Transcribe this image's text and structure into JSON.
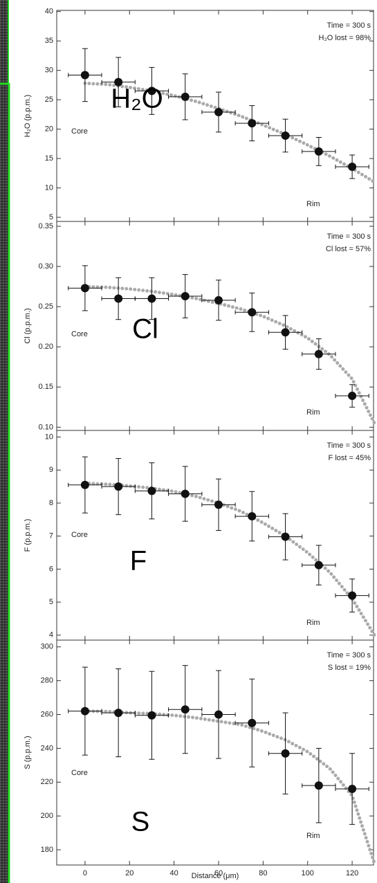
{
  "chart_data": [
    {
      "type": "errorbar",
      "y_label": "H₂O (p.p.m.)",
      "big_label": "H₂O",
      "annotations": [
        "Time = 300 s",
        "H₂O lost = 98%",
        "Core",
        "Rim"
      ],
      "x": [
        0,
        15,
        30,
        45,
        60,
        75,
        90,
        105,
        120
      ],
      "x_errors": [
        7.5,
        7.5,
        7.5,
        7.5,
        7.5,
        7.5,
        7.5,
        7.5,
        7.5
      ],
      "values": [
        29.2,
        28,
        26.5,
        25.5,
        22.9,
        21,
        18.9,
        16.2,
        13.6
      ],
      "errors": [
        4.5,
        4.2,
        4,
        3.9,
        3.4,
        3,
        2.8,
        2.4,
        2
      ],
      "color": "#111111",
      "fit": {
        "x": [
          0,
          10,
          20,
          30,
          40,
          50,
          60,
          70,
          80,
          90,
          100,
          110,
          120,
          130
        ],
        "values": [
          27.8,
          27.6,
          27.1,
          26.5,
          25.7,
          24.7,
          23.5,
          22.2,
          20.7,
          19.1,
          17.3,
          15.4,
          13.3,
          11
        ],
        "color": "#aaaaaa"
      },
      "ylim": [
        4.3,
        40.2
      ],
      "yticks": [
        5,
        10,
        15,
        20,
        25,
        30,
        35,
        40
      ]
    },
    {
      "type": "errorbar",
      "y_label": "Cl (p.p.m.)",
      "big_label": "Cl",
      "annotations": [
        "Time = 300 s",
        "Cl lost = 57%",
        "Core",
        "Rim"
      ],
      "x": [
        0,
        15,
        30,
        45,
        60,
        75,
        90,
        105,
        120
      ],
      "x_errors": [
        7.5,
        7.5,
        7.5,
        7.5,
        7.5,
        7.5,
        7.5,
        7.5,
        7.5
      ],
      "values": [
        0.273,
        0.26,
        0.26,
        0.263,
        0.258,
        0.243,
        0.218,
        0.191,
        0.139
      ],
      "errors": [
        0.028,
        0.026,
        0.026,
        0.027,
        0.025,
        0.024,
        0.021,
        0.019,
        0.014
      ],
      "color": "#111111",
      "fit": {
        "x": [
          0,
          10,
          20,
          30,
          40,
          50,
          60,
          70,
          80,
          90,
          100,
          110,
          120,
          130
        ],
        "values": [
          0.275,
          0.274,
          0.272,
          0.269,
          0.265,
          0.26,
          0.254,
          0.247,
          0.238,
          0.226,
          0.211,
          0.19,
          0.16,
          0.105
        ],
        "color": "#aaaaaa"
      },
      "ylim": [
        0.096,
        0.356
      ],
      "yticks": [
        {
          "value": 0.1,
          "label": "0.10"
        },
        {
          "value": 0.15,
          "label": "0.15"
        },
        {
          "value": 0.2,
          "label": "0.20"
        },
        {
          "value": 0.25,
          "label": "0.25"
        },
        {
          "value": 0.3,
          "label": "0.30"
        },
        {
          "value": 0.35,
          "label": "0.35"
        }
      ]
    },
    {
      "type": "errorbar",
      "y_label": "F (p.p.m.)",
      "big_label": "F",
      "annotations": [
        "Time = 300 s",
        "F lost = 45%",
        "Core",
        "Rim"
      ],
      "x": [
        0,
        15,
        30,
        45,
        60,
        75,
        90,
        105,
        120
      ],
      "x_errors": [
        7.5,
        7.5,
        7.5,
        7.5,
        7.5,
        7.5,
        7.5,
        7.5,
        7.5
      ],
      "values": [
        8.55,
        8.5,
        8.37,
        8.28,
        7.95,
        7.6,
        6.98,
        6.12,
        5.2
      ],
      "errors": [
        0.85,
        0.85,
        0.85,
        0.83,
        0.78,
        0.75,
        0.7,
        0.6,
        0.5
      ],
      "color": "#111111",
      "fit": {
        "x": [
          0,
          10,
          20,
          30,
          40,
          50,
          60,
          70,
          80,
          90,
          100,
          110,
          120,
          130
        ],
        "values": [
          8.6,
          8.57,
          8.52,
          8.45,
          8.35,
          8.2,
          8,
          7.75,
          7.4,
          7,
          6.5,
          5.9,
          5.1,
          4
        ],
        "color": "#aaaaaa"
      },
      "ylim": [
        3.85,
        10.2
      ],
      "yticks": [
        4,
        5,
        6,
        7,
        8,
        9,
        10
      ]
    },
    {
      "type": "errorbar",
      "y_label": "S (p.p.m.)",
      "big_label": "S",
      "annotations": [
        "Time = 300 s",
        "S lost = 19%",
        "Core",
        "Rim"
      ],
      "x": [
        0,
        15,
        30,
        45,
        60,
        75,
        90,
        105,
        120
      ],
      "x_errors": [
        7.5,
        7.5,
        7.5,
        7.5,
        7.5,
        7.5,
        7.5,
        7.5,
        7.5
      ],
      "values": [
        262,
        261,
        259.5,
        263,
        260,
        255,
        237,
        218,
        216
      ],
      "errors": [
        26,
        26,
        26,
        26,
        26,
        26,
        24,
        22,
        21
      ],
      "color": "#111111",
      "fit": {
        "x": [
          0,
          10,
          20,
          30,
          40,
          50,
          60,
          70,
          80,
          90,
          100,
          110,
          120,
          130
        ],
        "values": [
          262,
          261.8,
          261,
          260.5,
          259.5,
          258,
          256,
          254,
          250,
          245,
          238,
          228,
          212,
          172
        ],
        "color": "#aaaaaa"
      },
      "ylim": [
        171,
        304
      ],
      "yticks": [
        180,
        200,
        220,
        240,
        260,
        280,
        300
      ],
      "x_label": "Distance (μm)",
      "xlim": [
        -12.7,
        129.6
      ],
      "xticks": [
        0,
        20,
        40,
        60,
        80,
        100,
        120
      ]
    }
  ]
}
